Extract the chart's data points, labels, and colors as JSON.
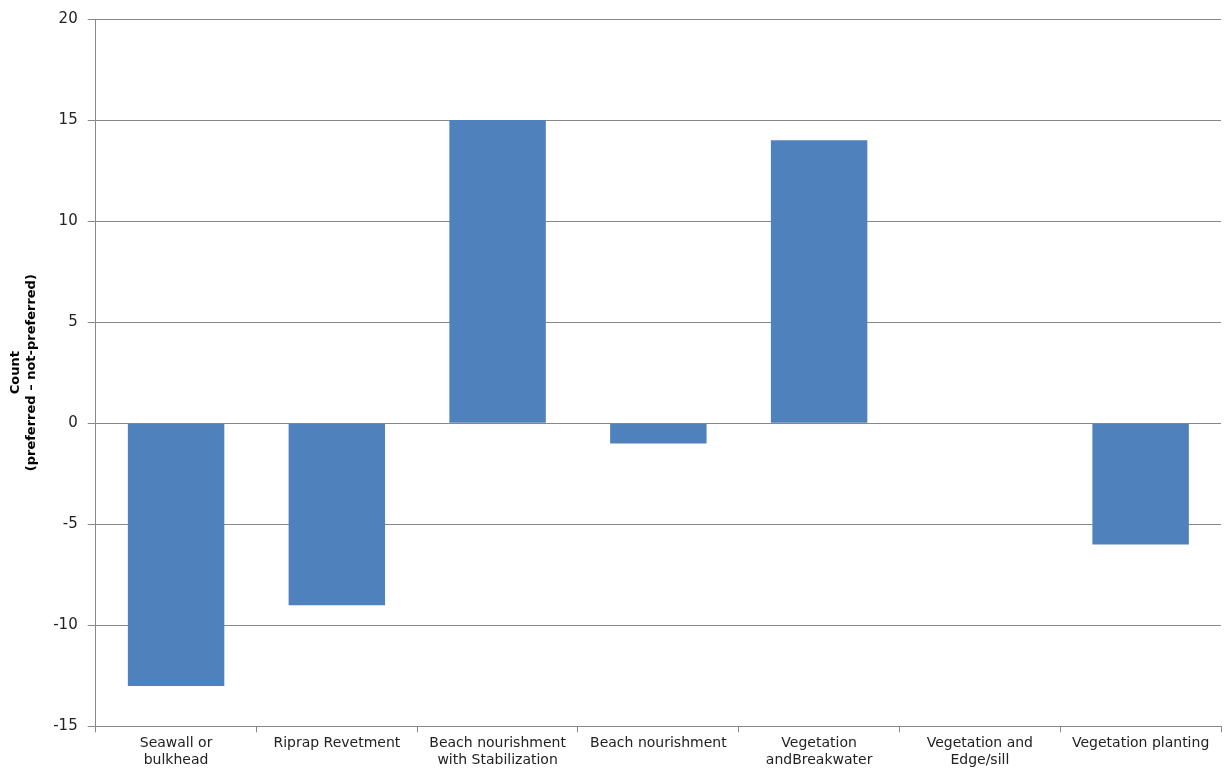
{
  "chart_data": {
    "type": "bar",
    "ylabel": "Count\n(preferred – not-preferred)",
    "categories": [
      "Seawall or bulkhead",
      "Riprap Revetment",
      "Beach nourishment with Stabilization",
      "Beach nourishment",
      "Vegetation andBreakwater",
      "Vegetation and Edge/sill",
      "Vegetation planting"
    ],
    "values": [
      -13,
      -9,
      15,
      -1,
      14,
      0,
      -6
    ],
    "color": "#4f81bd",
    "ylim": [
      -15,
      20
    ],
    "yticks": [
      -15,
      -10,
      -5,
      0,
      5,
      10,
      15,
      20
    ],
    "grid": "y"
  }
}
